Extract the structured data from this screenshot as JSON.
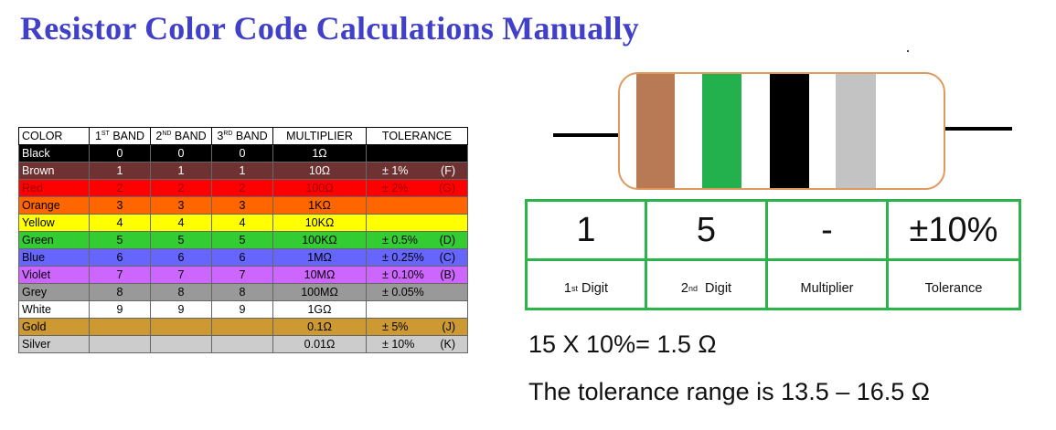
{
  "title": "Resistor Color Code Calculations Manually",
  "table": {
    "headers": {
      "color": "COLOR",
      "band1_num": "1",
      "band1_sup": "ST",
      "band1_word": " BAND",
      "band2_num": "2",
      "band2_sup": "ND",
      "band2_word": " BAND",
      "band3_num": "3",
      "band3_sup": "RD",
      "band3_word": " BAND",
      "multiplier": "MULTIPLIER",
      "tolerance": "TOLERANCE"
    },
    "rows": [
      {
        "name": "Black",
        "b1": "0",
        "b2": "0",
        "b3": "0",
        "mult": "1Ω",
        "tol": "",
        "code": "",
        "bg": "#000000",
        "fg": "#ffffff"
      },
      {
        "name": "Brown",
        "b1": "1",
        "b2": "1",
        "b3": "1",
        "mult": "10Ω",
        "tol": "± 1%",
        "code": "(F)",
        "bg": "#6e3232",
        "fg": "#ffffff"
      },
      {
        "name": "Red",
        "b1": "2",
        "b2": "2",
        "b3": "2",
        "mult": "100Ω",
        "tol": "± 2%",
        "code": "(G)",
        "bg": "#ff0000",
        "fg": "#9a0000"
      },
      {
        "name": "Orange",
        "b1": "3",
        "b2": "3",
        "b3": "3",
        "mult": "1KΩ",
        "tol": "",
        "code": "",
        "bg": "#ff6600",
        "fg": "#000000"
      },
      {
        "name": "Yellow",
        "b1": "4",
        "b2": "4",
        "b3": "4",
        "mult": "10KΩ",
        "tol": "",
        "code": "",
        "bg": "#ffff00",
        "fg": "#000000"
      },
      {
        "name": "Green",
        "b1": "5",
        "b2": "5",
        "b3": "5",
        "mult": "100KΩ",
        "tol": "± 0.5%",
        "code": "(D)",
        "bg": "#33cc33",
        "fg": "#000000"
      },
      {
        "name": "Blue",
        "b1": "6",
        "b2": "6",
        "b3": "6",
        "mult": "1MΩ",
        "tol": "± 0.25%",
        "code": "(C)",
        "bg": "#6666ff",
        "fg": "#000000"
      },
      {
        "name": "Violet",
        "b1": "7",
        "b2": "7",
        "b3": "7",
        "mult": "10MΩ",
        "tol": "± 0.10%",
        "code": "(B)",
        "bg": "#cc66ff",
        "fg": "#000000"
      },
      {
        "name": "Grey",
        "b1": "8",
        "b2": "8",
        "b3": "8",
        "mult": "100MΩ",
        "tol": "± 0.05%",
        "code": "",
        "bg": "#999999",
        "fg": "#000000"
      },
      {
        "name": "White",
        "b1": "9",
        "b2": "9",
        "b3": "9",
        "mult": "1GΩ",
        "tol": "",
        "code": "",
        "bg": "#ffffff",
        "fg": "#000000"
      },
      {
        "name": "Gold",
        "b1": "",
        "b2": "",
        "b3": "",
        "mult": "0.1Ω",
        "tol": "± 5%",
        "code": "(J)",
        "bg": "#cc9933",
        "fg": "#000000"
      },
      {
        "name": "Silver",
        "b1": "",
        "b2": "",
        "b3": "",
        "mult": "0.01Ω",
        "tol": "± 10%",
        "code": "(K)",
        "bg": "#cccccc",
        "fg": "#000000"
      }
    ]
  },
  "resistor": {
    "body_outline": "#e0995a",
    "bands": [
      {
        "color": "#b87a55"
      },
      {
        "color": "#22b14c"
      },
      {
        "color": "#000000"
      },
      {
        "color": "#c3c3c3"
      }
    ]
  },
  "digits": {
    "values": [
      "1",
      "5",
      "-",
      "±10%"
    ],
    "labels": [
      {
        "pre": "1",
        "sup": "st",
        "post": " Digit"
      },
      {
        "pre": "2",
        "sup": "nd",
        "post": "  Digit"
      },
      {
        "pre": "Multiplier",
        "sup": "",
        "post": ""
      },
      {
        "pre": "Tolerance",
        "sup": "",
        "post": ""
      }
    ]
  },
  "calc": {
    "line1": "15 X 10%= 1.5 Ω",
    "line2": "The tolerance range is 13.5 – 16.5 Ω"
  }
}
